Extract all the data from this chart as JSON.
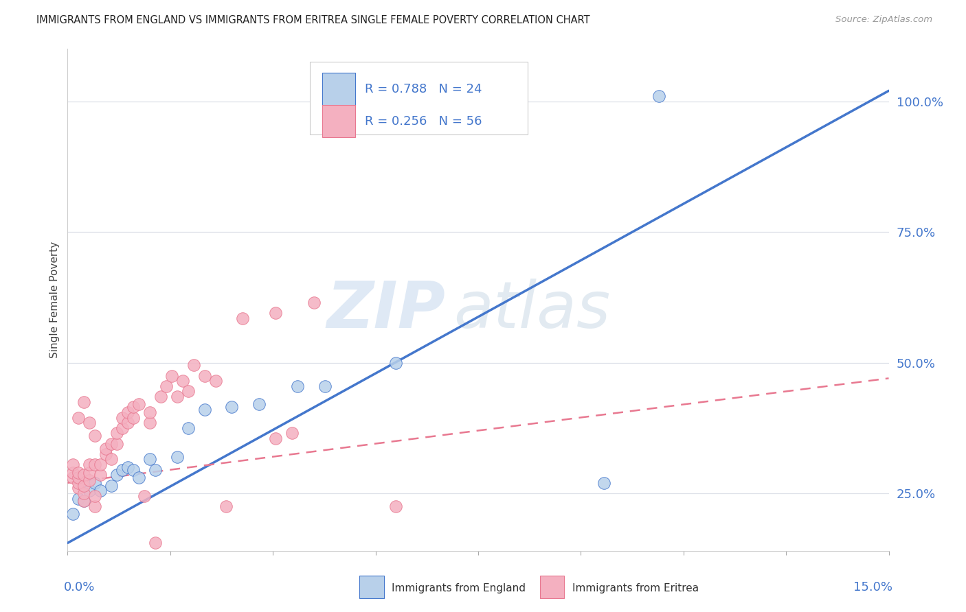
{
  "title": "IMMIGRANTS FROM ENGLAND VS IMMIGRANTS FROM ERITREA SINGLE FEMALE POVERTY CORRELATION CHART",
  "source": "Source: ZipAtlas.com",
  "ylabel": "Single Female Poverty",
  "y_ticks": [
    0.25,
    0.5,
    0.75,
    1.0
  ],
  "y_tick_labels": [
    "25.0%",
    "50.0%",
    "75.0%",
    "100.0%"
  ],
  "x_range": [
    0.0,
    0.15
  ],
  "y_range": [
    0.14,
    1.1
  ],
  "england_R": 0.788,
  "england_N": 24,
  "eritrea_R": 0.256,
  "eritrea_N": 56,
  "england_color": "#b8d0ea",
  "eritrea_color": "#f4b0c0",
  "england_line_color": "#4477cc",
  "eritrea_line_color": "#e87890",
  "watermark_zip": "ZIP",
  "watermark_atlas": "atlas",
  "background_color": "#ffffff",
  "grid_color": "#dde0e8",
  "england_x": [
    0.001,
    0.002,
    0.003,
    0.004,
    0.005,
    0.006,
    0.008,
    0.009,
    0.01,
    0.011,
    0.012,
    0.013,
    0.015,
    0.016,
    0.02,
    0.022,
    0.025,
    0.03,
    0.035,
    0.042,
    0.047,
    0.06,
    0.098,
    0.108
  ],
  "england_y": [
    0.21,
    0.24,
    0.235,
    0.255,
    0.27,
    0.255,
    0.265,
    0.285,
    0.295,
    0.3,
    0.295,
    0.28,
    0.315,
    0.295,
    0.32,
    0.375,
    0.41,
    0.415,
    0.42,
    0.455,
    0.455,
    0.5,
    0.27,
    1.01
  ],
  "eritrea_x": [
    0.001,
    0.001,
    0.001,
    0.002,
    0.002,
    0.002,
    0.002,
    0.003,
    0.003,
    0.003,
    0.003,
    0.004,
    0.004,
    0.004,
    0.005,
    0.005,
    0.005,
    0.006,
    0.006,
    0.007,
    0.007,
    0.008,
    0.008,
    0.009,
    0.009,
    0.01,
    0.01,
    0.011,
    0.011,
    0.012,
    0.012,
    0.013,
    0.014,
    0.015,
    0.015,
    0.016,
    0.017,
    0.018,
    0.019,
    0.02,
    0.021,
    0.022,
    0.023,
    0.025,
    0.027,
    0.029,
    0.032,
    0.038,
    0.038,
    0.041,
    0.045,
    0.06,
    0.002,
    0.003,
    0.004,
    0.005
  ],
  "eritrea_y": [
    0.28,
    0.29,
    0.305,
    0.26,
    0.27,
    0.28,
    0.29,
    0.235,
    0.25,
    0.265,
    0.285,
    0.275,
    0.29,
    0.305,
    0.225,
    0.245,
    0.305,
    0.285,
    0.305,
    0.325,
    0.335,
    0.315,
    0.345,
    0.345,
    0.365,
    0.375,
    0.395,
    0.385,
    0.405,
    0.395,
    0.415,
    0.42,
    0.245,
    0.385,
    0.405,
    0.155,
    0.435,
    0.455,
    0.475,
    0.435,
    0.465,
    0.445,
    0.495,
    0.475,
    0.465,
    0.225,
    0.585,
    0.355,
    0.595,
    0.365,
    0.615,
    0.225,
    0.395,
    0.425,
    0.385,
    0.36
  ],
  "eng_trend_x0": 0.0,
  "eng_trend_y0": 0.155,
  "eng_trend_x1": 0.15,
  "eng_trend_y1": 1.02,
  "eri_trend_x0": 0.0,
  "eri_trend_y0": 0.27,
  "eri_trend_x1": 0.15,
  "eri_trend_y1": 0.47
}
